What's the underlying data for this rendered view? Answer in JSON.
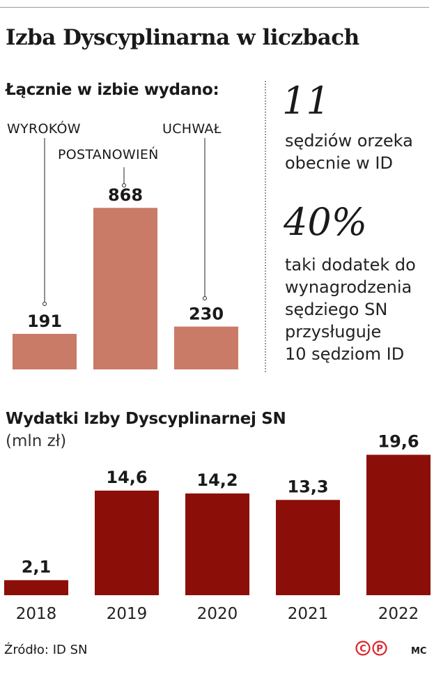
{
  "title": "Izba Dyscyplinarna w liczbach",
  "chart_data": [
    {
      "type": "bar",
      "title": "Łącznie w izbie wydano:",
      "categories": [
        "WYROKÓW",
        "POSTANOWIEŃ",
        "UCHWAŁ"
      ],
      "values": [
        191,
        868,
        230
      ],
      "value_labels": [
        "191",
        "868",
        "230"
      ],
      "bar_color": "#c97b68",
      "ylim": [
        0,
        1000
      ]
    },
    {
      "type": "bar",
      "title": "Wydatki Izby Dyscyplinarnej SN",
      "subtitle": "(mln zł)",
      "categories": [
        "2018",
        "2019",
        "2020",
        "2021",
        "2022"
      ],
      "values": [
        2.1,
        14.6,
        14.2,
        13.3,
        19.6
      ],
      "value_labels": [
        "2,1",
        "14,6",
        "14,2",
        "13,3",
        "19,6"
      ],
      "bar_color": "#8b0f08",
      "ylim": [
        0,
        20
      ]
    }
  ],
  "facts": [
    {
      "number": "11",
      "lines": [
        "sędziów orzeka",
        "obecnie w ID"
      ]
    },
    {
      "number": "40%",
      "lines": [
        "taki dodatek do",
        "wynagrodzenia",
        "sędziego SN",
        "przysługuje",
        "10 sędziom ID"
      ]
    }
  ],
  "source": "Źródło: ID SN",
  "logo_text": "CP",
  "author": "MC",
  "colors": {
    "accent_light": "#c97b68",
    "accent_dark": "#8b0f08",
    "logo_red": "#d9262c"
  }
}
